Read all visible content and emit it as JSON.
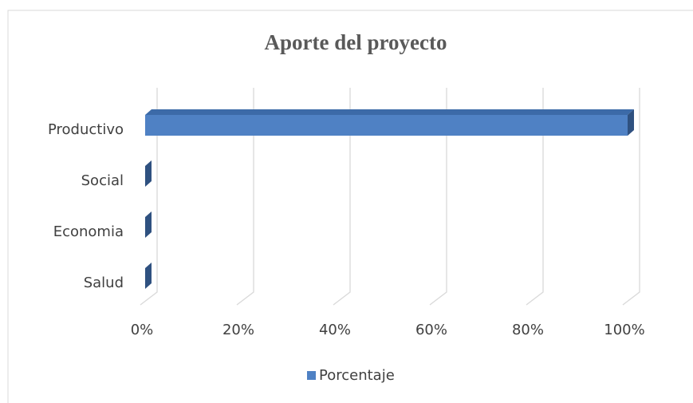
{
  "chart_data": {
    "type": "bar",
    "orientation": "horizontal",
    "title": "Aporte del proyecto",
    "categories": [
      "Productivo",
      "Social",
      "Economia",
      "Salud"
    ],
    "series": [
      {
        "name": "Porcentaje",
        "color": "#4f81c4",
        "values": [
          100,
          0,
          0,
          0
        ]
      }
    ],
    "xlim": [
      0,
      100
    ],
    "xticks": [
      {
        "value": 0,
        "label": "0%"
      },
      {
        "value": 20,
        "label": "20%"
      },
      {
        "value": 40,
        "label": "40%"
      },
      {
        "value": 60,
        "label": "60%"
      },
      {
        "value": 80,
        "label": "80%"
      },
      {
        "value": 100,
        "label": "100%"
      }
    ],
    "grid": true,
    "legend": "bottom"
  }
}
